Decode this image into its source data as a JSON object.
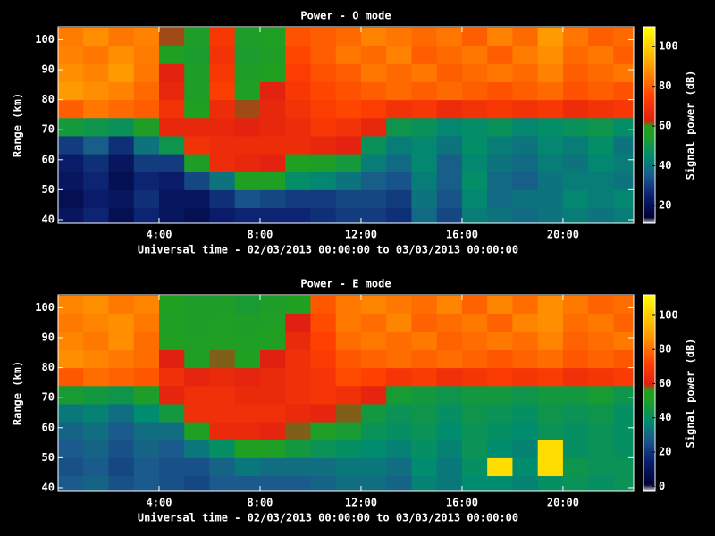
{
  "chart_data": [
    {
      "type": "heatmap",
      "title": "Power - O mode",
      "xlabel": "Universal time - 02/03/2013 00:00:00 to 03/03/2013 00:00:00",
      "ylabel": "Range (km)",
      "colorbar_label": "Signal power (dB)",
      "x": [
        0.5,
        1.5,
        2.5,
        3.5,
        4.5,
        5.5,
        6.5,
        7.5,
        8.5,
        9.5,
        10.5,
        11.5,
        12.5,
        13.5,
        14.5,
        15.5,
        16.5,
        17.5,
        18.5,
        19.5,
        20.5,
        21.5,
        22.5
      ],
      "y": [
        41,
        47,
        53,
        59,
        65,
        71,
        77,
        83,
        89,
        95,
        101
      ],
      "values": [
        [
          22,
          26,
          20,
          26,
          22,
          20,
          24,
          26,
          26,
          26,
          28,
          30,
          30,
          28,
          38,
          32,
          42,
          40,
          38,
          40,
          42,
          40,
          42
        ],
        [
          20,
          24,
          22,
          28,
          22,
          22,
          28,
          34,
          32,
          30,
          30,
          32,
          32,
          30,
          40,
          34,
          44,
          38,
          40,
          40,
          44,
          42,
          44
        ],
        [
          22,
          26,
          20,
          26,
          24,
          32,
          40,
          60,
          58,
          46,
          44,
          40,
          36,
          34,
          42,
          36,
          46,
          38,
          36,
          40,
          42,
          42,
          40
        ],
        [
          24,
          28,
          22,
          30,
          30,
          56,
          68,
          66,
          64,
          60,
          56,
          52,
          42,
          38,
          44,
          36,
          44,
          40,
          38,
          42,
          40,
          44,
          42
        ],
        [
          30,
          36,
          28,
          40,
          50,
          70,
          68,
          68,
          68,
          68,
          66,
          64,
          48,
          42,
          44,
          40,
          46,
          42,
          40,
          44,
          42,
          46,
          40
        ],
        [
          52,
          50,
          48,
          56,
          66,
          66,
          66,
          64,
          66,
          68,
          72,
          70,
          66,
          50,
          48,
          44,
          46,
          48,
          44,
          46,
          48,
          50,
          46
        ],
        [
          80,
          84,
          82,
          80,
          70,
          60,
          68,
          62,
          66,
          70,
          74,
          76,
          74,
          70,
          72,
          68,
          70,
          72,
          70,
          72,
          68,
          70,
          72
        ],
        [
          90,
          88,
          86,
          82,
          66,
          56,
          74,
          58,
          64,
          72,
          76,
          78,
          80,
          82,
          80,
          82,
          80,
          78,
          80,
          82,
          78,
          80,
          78
        ],
        [
          88,
          86,
          90,
          84,
          64,
          55,
          72,
          56,
          60,
          74,
          78,
          80,
          84,
          82,
          84,
          80,
          82,
          84,
          82,
          86,
          80,
          82,
          84
        ],
        [
          86,
          84,
          88,
          85,
          60,
          54,
          70,
          54,
          56,
          76,
          80,
          84,
          82,
          86,
          80,
          82,
          84,
          80,
          85,
          88,
          82,
          84,
          80
        ],
        [
          85,
          88,
          84,
          86,
          62,
          55,
          72,
          55,
          58,
          78,
          80,
          82,
          86,
          84,
          82,
          84,
          80,
          86,
          82,
          90,
          84,
          80,
          82
        ]
      ],
      "xlim": [
        0,
        22.8
      ],
      "ylim": [
        38.8,
        104.3
      ],
      "xticks": [
        {
          "value": 4,
          "label": "4:00"
        },
        {
          "value": 8,
          "label": "8:00"
        },
        {
          "value": 12,
          "label": "12:00"
        },
        {
          "value": 16,
          "label": "16:00"
        },
        {
          "value": 20,
          "label": "20:00"
        }
      ],
      "yticks": [
        40,
        50,
        60,
        70,
        80,
        90,
        100
      ],
      "zlim": [
        11,
        110
      ],
      "zticks": [
        20,
        40,
        60,
        80,
        100
      ],
      "colorscale": [
        [
          11,
          "#ffffff"
        ],
        [
          14,
          "#000033"
        ],
        [
          25,
          "#0a1e6e"
        ],
        [
          35,
          "#1a5a8c"
        ],
        [
          45,
          "#008c6e"
        ],
        [
          55,
          "#1e9e28"
        ],
        [
          60,
          "#20a020"
        ],
        [
          63,
          "#e02010"
        ],
        [
          75,
          "#ff4000"
        ],
        [
          90,
          "#ff9a00"
        ],
        [
          110,
          "#ffff00"
        ]
      ]
    },
    {
      "type": "heatmap",
      "title": "Power - E mode",
      "xlabel": "Universal time - 02/03/2013 00:00:00 to 03/03/2013 00:00:00",
      "ylabel": "Range (km)",
      "colorbar_label": "Signal power (dB)",
      "x": [
        0.5,
        1.5,
        2.5,
        3.5,
        4.5,
        5.5,
        6.5,
        7.5,
        8.5,
        9.5,
        10.5,
        11.5,
        12.5,
        13.5,
        14.5,
        15.5,
        16.5,
        17.5,
        18.5,
        19.5,
        20.5,
        21.5,
        22.5
      ],
      "y": [
        41,
        47,
        53,
        59,
        65,
        71,
        77,
        83,
        89,
        95,
        101
      ],
      "values": [
        [
          28,
          30,
          26,
          28,
          26,
          24,
          28,
          28,
          28,
          28,
          30,
          32,
          32,
          30,
          36,
          34,
          38,
          38,
          36,
          40,
          42,
          40,
          42
        ],
        [
          26,
          28,
          24,
          28,
          26,
          26,
          30,
          34,
          32,
          32,
          32,
          34,
          34,
          32,
          38,
          34,
          40,
          104,
          38,
          104,
          44,
          42,
          42
        ],
        [
          28,
          30,
          26,
          30,
          28,
          34,
          40,
          56,
          54,
          46,
          42,
          40,
          38,
          36,
          40,
          36,
          42,
          38,
          36,
          104,
          40,
          42,
          40
        ],
        [
          30,
          32,
          28,
          32,
          32,
          54,
          64,
          64,
          62,
          58,
          52,
          48,
          42,
          40,
          42,
          38,
          42,
          40,
          38,
          42,
          40,
          42,
          40
        ],
        [
          34,
          36,
          32,
          38,
          46,
          66,
          66,
          66,
          66,
          64,
          62,
          58,
          46,
          42,
          44,
          40,
          44,
          42,
          40,
          44,
          42,
          44,
          40
        ],
        [
          48,
          46,
          44,
          50,
          62,
          66,
          66,
          64,
          64,
          66,
          68,
          66,
          62,
          48,
          46,
          44,
          46,
          46,
          44,
          46,
          46,
          48,
          44
        ],
        [
          76,
          80,
          78,
          76,
          66,
          62,
          64,
          62,
          64,
          66,
          68,
          74,
          72,
          68,
          70,
          66,
          68,
          70,
          68,
          70,
          66,
          68,
          70
        ],
        [
          86,
          84,
          82,
          80,
          60,
          54,
          58,
          56,
          60,
          66,
          70,
          76,
          78,
          80,
          78,
          80,
          78,
          76,
          78,
          80,
          76,
          78,
          76
        ],
        [
          84,
          82,
          86,
          80,
          56,
          52,
          54,
          52,
          56,
          64,
          72,
          80,
          82,
          80,
          82,
          78,
          80,
          82,
          80,
          84,
          78,
          80,
          82
        ],
        [
          82,
          84,
          86,
          82,
          54,
          50,
          52,
          50,
          52,
          60,
          74,
          82,
          80,
          84,
          78,
          80,
          82,
          78,
          84,
          86,
          80,
          82,
          78
        ],
        [
          84,
          86,
          82,
          84,
          56,
          50,
          50,
          48,
          50,
          56,
          76,
          82,
          84,
          82,
          80,
          84,
          78,
          84,
          80,
          86,
          82,
          78,
          80
        ]
      ],
      "xlim": [
        0,
        22.8
      ],
      "ylim": [
        38.8,
        104.3
      ],
      "xticks": [
        {
          "value": 4,
          "label": "4:00"
        },
        {
          "value": 8,
          "label": "8:00"
        },
        {
          "value": 12,
          "label": "12:00"
        },
        {
          "value": 16,
          "label": "16:00"
        },
        {
          "value": 20,
          "label": "20:00"
        }
      ],
      "yticks": [
        40,
        50,
        60,
        70,
        80,
        90,
        100
      ],
      "zlim": [
        -3,
        112
      ],
      "zticks": [
        0,
        20,
        40,
        60,
        80,
        100
      ],
      "colorscale": [
        [
          -3,
          "#ffffff"
        ],
        [
          1,
          "#000033"
        ],
        [
          15,
          "#0a1e6e"
        ],
        [
          28,
          "#1a5a8c"
        ],
        [
          38,
          "#008c6e"
        ],
        [
          50,
          "#1e9e28"
        ],
        [
          56,
          "#20a020"
        ],
        [
          60,
          "#e02010"
        ],
        [
          72,
          "#ff4000"
        ],
        [
          88,
          "#ff9a00"
        ],
        [
          112,
          "#ffff00"
        ]
      ]
    }
  ]
}
